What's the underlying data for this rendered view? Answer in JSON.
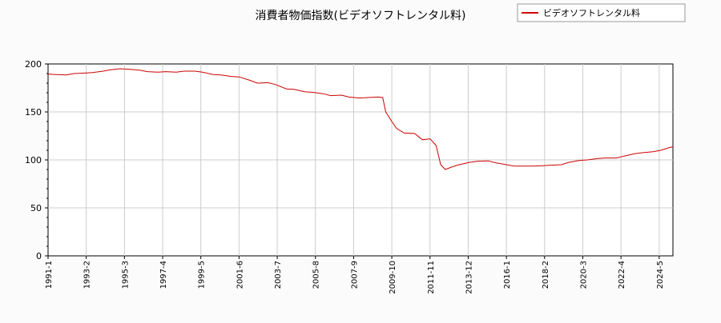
{
  "chart_data": {
    "type": "line",
    "title": "消費者物価指数(ビデオソフトレンタル料)",
    "xlabel": "",
    "ylabel": "",
    "ylim": [
      0,
      200
    ],
    "yticks": [
      0,
      50,
      100,
      150,
      200
    ],
    "xlim": [
      "1991-01",
      "2025-02"
    ],
    "xticks": [
      "1991-1",
      "1993-2",
      "1995-3",
      "1997-4",
      "1999-5",
      "2001-6",
      "2003-7",
      "2005-8",
      "2007-9",
      "2009-10",
      "2011-11",
      "2013-12",
      "2016-1",
      "2018-2",
      "2020-3",
      "2022-4",
      "2024-5"
    ],
    "grid": true,
    "legend_position": "top-right",
    "series": [
      {
        "name": "ビデオソフトレンタル料",
        "color": "#cc0000",
        "points": [
          [
            "1991-01",
            189.5
          ],
          [
            "1991-06",
            189.0
          ],
          [
            "1992-01",
            188.5
          ],
          [
            "1992-06",
            190.0
          ],
          [
            "1993-01",
            190.5
          ],
          [
            "1993-06",
            191.0
          ],
          [
            "1994-01",
            192.5
          ],
          [
            "1994-06",
            194.0
          ],
          [
            "1994-12",
            195.0
          ],
          [
            "1995-06",
            194.5
          ],
          [
            "1996-01",
            193.5
          ],
          [
            "1996-06",
            192.0
          ],
          [
            "1997-01",
            191.5
          ],
          [
            "1997-06",
            192.0
          ],
          [
            "1998-01",
            191.5
          ],
          [
            "1998-06",
            192.5
          ],
          [
            "1999-01",
            192.5
          ],
          [
            "1999-06",
            191.5
          ],
          [
            "2000-01",
            189.0
          ],
          [
            "2000-06",
            188.5
          ],
          [
            "2001-01",
            187.0
          ],
          [
            "2001-06",
            186.5
          ],
          [
            "2002-01",
            183.0
          ],
          [
            "2002-06",
            180.0
          ],
          [
            "2003-01",
            180.5
          ],
          [
            "2003-06",
            178.5
          ],
          [
            "2004-01",
            174.0
          ],
          [
            "2004-06",
            173.5
          ],
          [
            "2005-01",
            171.0
          ],
          [
            "2005-06",
            170.5
          ],
          [
            "2006-01",
            169.0
          ],
          [
            "2006-06",
            167.0
          ],
          [
            "2007-01",
            167.5
          ],
          [
            "2007-06",
            165.5
          ],
          [
            "2008-01",
            164.5
          ],
          [
            "2008-06",
            165.0
          ],
          [
            "2009-01",
            165.5
          ],
          [
            "2009-04",
            165.0
          ],
          [
            "2009-06",
            150.0
          ],
          [
            "2009-10",
            140.0
          ],
          [
            "2010-01",
            133.0
          ],
          [
            "2010-06",
            128.0
          ],
          [
            "2011-01",
            127.5
          ],
          [
            "2011-06",
            121.0
          ],
          [
            "2011-11",
            122.0
          ],
          [
            "2012-03",
            115.0
          ],
          [
            "2012-06",
            95.0
          ],
          [
            "2012-09",
            90.0
          ],
          [
            "2013-01",
            92.5
          ],
          [
            "2013-06",
            95.0
          ],
          [
            "2014-01",
            97.5
          ],
          [
            "2014-06",
            98.5
          ],
          [
            "2015-01",
            99.0
          ],
          [
            "2015-06",
            97.0
          ],
          [
            "2016-01",
            95.0
          ],
          [
            "2016-06",
            93.5
          ],
          [
            "2017-01",
            93.5
          ],
          [
            "2017-06",
            93.5
          ],
          [
            "2018-01",
            94.0
          ],
          [
            "2018-06",
            94.5
          ],
          [
            "2019-01",
            95.0
          ],
          [
            "2019-06",
            97.5
          ],
          [
            "2020-01",
            99.5
          ],
          [
            "2020-06",
            100.0
          ],
          [
            "2021-01",
            101.5
          ],
          [
            "2021-06",
            102.0
          ],
          [
            "2022-01",
            102.0
          ],
          [
            "2022-06",
            104.0
          ],
          [
            "2023-01",
            106.5
          ],
          [
            "2023-06",
            107.5
          ],
          [
            "2024-01",
            108.5
          ],
          [
            "2024-06",
            110.0
          ],
          [
            "2024-12",
            113.0
          ],
          [
            "2025-02",
            113.5
          ]
        ]
      }
    ]
  }
}
